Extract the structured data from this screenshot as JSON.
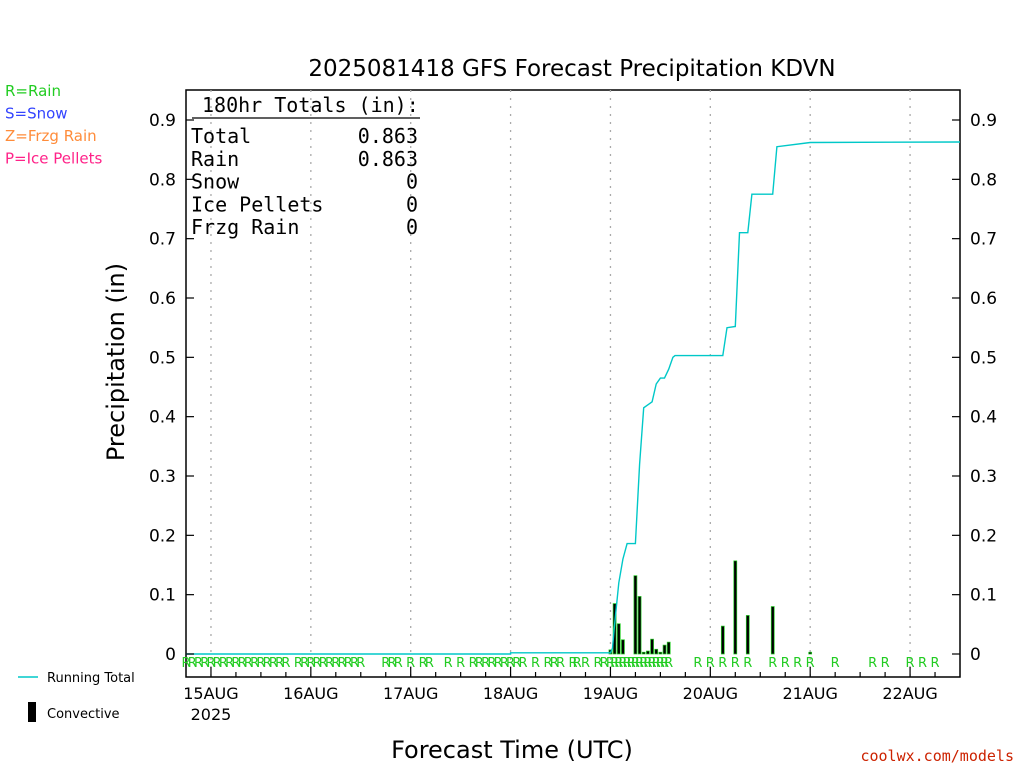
{
  "chart_data": {
    "type": "bar",
    "title": "2025081418 GFS Forecast Precipitation KDVN",
    "xlabel": "Forecast Time (UTC)",
    "ylabel": "Precipitation (in)",
    "ylim": [
      0,
      0.95
    ],
    "y_ticks": [
      0,
      0.1,
      0.2,
      0.3,
      0.4,
      0.5,
      0.6,
      0.7,
      0.8,
      0.9
    ],
    "y_tick_labels": [
      "0",
      "0.1",
      "0.2",
      "0.3",
      "0.4",
      "0.5",
      "0.6",
      "0.7",
      "0.8",
      "0.9"
    ],
    "x_unit": "hours since 15AUG 00 UTC",
    "xlim": [
      -6,
      180
    ],
    "x_ticks": [
      0,
      24,
      48,
      72,
      96,
      120,
      144,
      168
    ],
    "x_tick_labels": [
      "15AUG",
      "16AUG",
      "17AUG",
      "18AUG",
      "19AUG",
      "20AUG",
      "21AUG",
      "22AUG"
    ],
    "x_year_label": "2025",
    "grid": "vertical dotted at each day",
    "legend": [
      {
        "label": "R=Rain",
        "color": "#22cc22"
      },
      {
        "label": "S=Snow",
        "color": "#3344ff"
      },
      {
        "label": "Z=Frzg Rain",
        "color": "#ff8c3a"
      },
      {
        "label": "P=Ice Pellets",
        "color": "#ff2288"
      }
    ],
    "bottom_legend": [
      {
        "label": "Running Total",
        "color": "#00c8c8"
      },
      {
        "label": "Convective",
        "color": "#000000"
      }
    ],
    "totals": {
      "heading": "180hr Totals (in):",
      "rows": [
        {
          "label": "Total",
          "value": "0.863"
        },
        {
          "label": "Rain",
          "value": "0.863"
        },
        {
          "label": "Snow",
          "value": "0"
        },
        {
          "label": "Ice Pellets",
          "value": "0"
        },
        {
          "label": "Frzg Rain",
          "value": "0"
        }
      ]
    },
    "series": [
      {
        "name": "Running Total",
        "kind": "line",
        "color": "#00c8c8",
        "points": [
          [
            -6,
            0
          ],
          [
            72,
            0
          ],
          [
            72,
            0.002
          ],
          [
            96,
            0.002
          ],
          [
            96.5,
            0.01
          ],
          [
            97,
            0.05
          ],
          [
            98,
            0.12
          ],
          [
            99,
            0.16
          ],
          [
            100,
            0.186
          ],
          [
            102,
            0.186
          ],
          [
            103,
            0.32
          ],
          [
            104,
            0.415
          ],
          [
            105,
            0.42
          ],
          [
            106,
            0.425
          ],
          [
            107,
            0.455
          ],
          [
            108,
            0.465
          ],
          [
            109,
            0.465
          ],
          [
            110,
            0.48
          ],
          [
            111,
            0.5
          ],
          [
            111.5,
            0.503
          ],
          [
            123,
            0.503
          ],
          [
            124,
            0.55
          ],
          [
            126,
            0.552
          ],
          [
            127,
            0.71
          ],
          [
            129,
            0.71
          ],
          [
            130,
            0.775
          ],
          [
            135,
            0.775
          ],
          [
            136,
            0.855
          ],
          [
            144,
            0.862
          ],
          [
            180,
            0.863
          ]
        ]
      },
      {
        "name": "Convective",
        "kind": "bars",
        "color": "#000000",
        "points": [
          [
            96,
            0.007
          ],
          [
            97,
            0.085
          ],
          [
            98,
            0.051
          ],
          [
            99,
            0.024
          ],
          [
            102,
            0.132
          ],
          [
            103,
            0.097
          ],
          [
            104,
            0.003
          ],
          [
            105,
            0.005
          ],
          [
            106,
            0.025
          ],
          [
            107,
            0.008
          ],
          [
            108,
            0.003
          ],
          [
            109,
            0.015
          ],
          [
            110,
            0.02
          ],
          [
            123,
            0.047
          ],
          [
            126,
            0.157
          ],
          [
            129,
            0.065
          ],
          [
            135,
            0.08
          ],
          [
            144,
            0.003
          ]
        ]
      }
    ],
    "precip_type_markers": {
      "symbol": "R",
      "color": "#22cc22",
      "hours": [
        -6,
        -4.5,
        -3,
        -1.5,
        0,
        1.5,
        3,
        4.5,
        6,
        7.5,
        9,
        10.5,
        12,
        13.5,
        15,
        16.5,
        18,
        21,
        22.5,
        24,
        25.5,
        27,
        28.5,
        30,
        31.5,
        33,
        34.5,
        36,
        42,
        43.5,
        45,
        48,
        51,
        52.5,
        57,
        60,
        63,
        64.5,
        66,
        67.5,
        69,
        70.5,
        72,
        73.5,
        75,
        78,
        81,
        82.5,
        84,
        87,
        88,
        90,
        93,
        94.5,
        96,
        97,
        98,
        99,
        100,
        101,
        102,
        103,
        104,
        105,
        106,
        107,
        108,
        109,
        110,
        117,
        120,
        123,
        126,
        129,
        135,
        138,
        141,
        144,
        150,
        159,
        162,
        168,
        171,
        174
      ]
    },
    "source_label": "coolwx.com/models"
  }
}
